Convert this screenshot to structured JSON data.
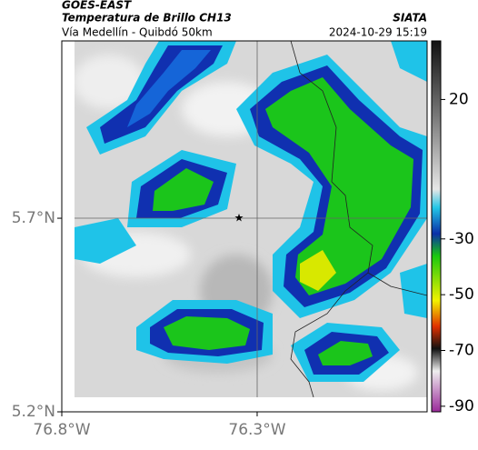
{
  "header": {
    "source": "GOES-EAST",
    "title": "Temperatura de Brillo CH13",
    "brand": "SIATA",
    "subtitle": "Vía Medellín - Quibdó 50km",
    "timestamp": "2024-10-29 15:19"
  },
  "map": {
    "xlim": [
      -76.8,
      -75.865
    ],
    "ylim": [
      5.2,
      6.158
    ],
    "xticks": [
      {
        "value": -76.8,
        "label": "76.8°W"
      },
      {
        "value": -76.3,
        "label": "76.3°W"
      }
    ],
    "yticks": [
      {
        "value": 5.7,
        "label": "5.7°N"
      },
      {
        "value": 5.2,
        "label": "5.2°N"
      }
    ]
  },
  "colorbar": {
    "lim": [
      -92,
      41
    ],
    "ticks": [
      20,
      -30,
      -50,
      -70,
      -90
    ]
  }
}
